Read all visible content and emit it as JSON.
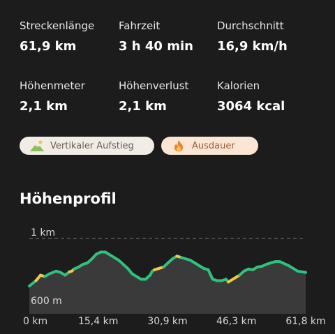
{
  "stats": [
    {
      "label": "Streckenlänge",
      "value": "61,9 km"
    },
    {
      "label": "Fahrzeit",
      "value": "3 h 40 min"
    },
    {
      "label": "Durchschnitt",
      "value": "16,9 km/h"
    },
    {
      "label": "Höhenmeter",
      "value": "2,1 km"
    },
    {
      "label": "Höhenverlust",
      "value": "2,1 km"
    },
    {
      "label": "Kalorien",
      "value": "3064 kcal"
    }
  ],
  "chips": [
    {
      "label": "Vertikaler Aufstieg",
      "icon": "mountain-icon"
    },
    {
      "label": "Ausdauer",
      "icon": "flame-icon"
    }
  ],
  "section_title": "Höhenprofil",
  "chart_data": {
    "type": "area",
    "title": "Höhenprofil",
    "y_ticks": [
      "1 km",
      "600 m"
    ],
    "x_tick_labels": [
      "0 km",
      "15,4 km",
      "30,9 km",
      "46,3 km",
      "61,8 km"
    ],
    "x_ticks": [
      0,
      15.4,
      30.9,
      46.3,
      61.8
    ],
    "xlim": [
      0,
      61.8
    ],
    "ylim": [
      560,
      1000
    ],
    "x": [
      0,
      1.5,
      2.5,
      3.5,
      4.5,
      6,
      7,
      8,
      9,
      9.5,
      10,
      11,
      12,
      13,
      14,
      15,
      16,
      17,
      18,
      19,
      20,
      21,
      22,
      23,
      24,
      25,
      26,
      27,
      27.5,
      28,
      29,
      30,
      31,
      32,
      33,
      34,
      35,
      36,
      37,
      38,
      39,
      40,
      41,
      42,
      43,
      44,
      44.5,
      45,
      46,
      47,
      48,
      49,
      50,
      51,
      52,
      53,
      54,
      55,
      56,
      57,
      58,
      59,
      60,
      61.8
    ],
    "y": [
      650,
      690,
      730,
      720,
      740,
      760,
      750,
      730,
      755,
      760,
      775,
      790,
      810,
      820,
      850,
      885,
      900,
      900,
      880,
      860,
      840,
      810,
      780,
      740,
      720,
      700,
      700,
      730,
      760,
      770,
      780,
      790,
      820,
      850,
      870,
      860,
      850,
      840,
      820,
      800,
      780,
      770,
      700,
      690,
      690,
      700,
      680,
      690,
      710,
      730,
      760,
      775,
      770,
      790,
      795,
      810,
      820,
      830,
      830,
      815,
      800,
      780,
      760,
      750
    ],
    "yellow_segments": [
      [
        1.5,
        3.5
      ],
      [
        9,
        10
      ],
      [
        28,
        29.5
      ],
      [
        33,
        34
      ],
      [
        44.5,
        46.5
      ]
    ],
    "area_fill": "#3a3a3a",
    "line_color": "#2ec27e",
    "highlight_color": "#f2c744"
  }
}
